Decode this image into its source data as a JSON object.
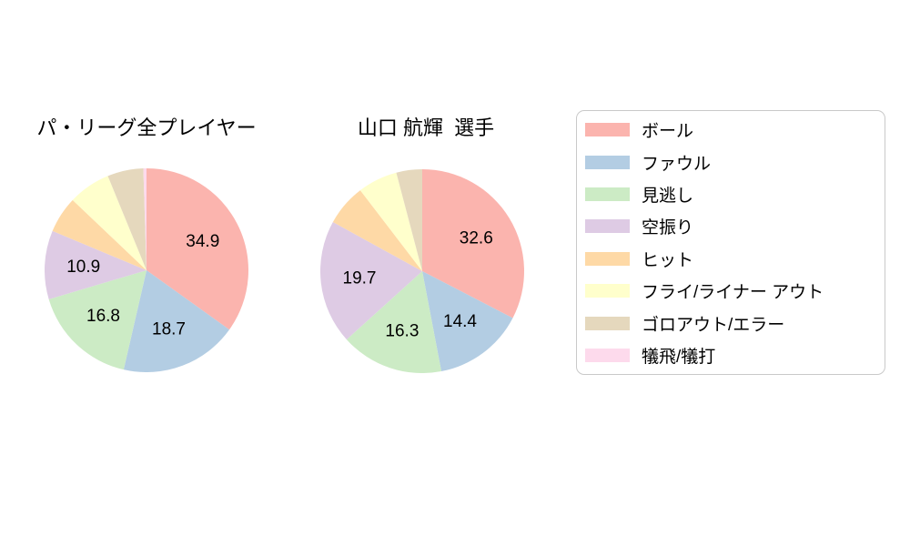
{
  "background_color": "#ffffff",
  "text_color": "#000000",
  "palette": {
    "red": "#fbb4ae",
    "blue": "#b3cde3",
    "green": "#ccebc5",
    "purple": "#decbe4",
    "orange": "#fed9a6",
    "yellow": "#ffffcc",
    "tan": "#e5d8bd",
    "pink": "#fddaec"
  },
  "chart_data": [
    {
      "type": "pie",
      "title": "パ・リーグ全プレイヤー",
      "direction": "clockwise",
      "start_angle": "12-oclock",
      "slices": [
        {
          "label": "ボール",
          "value": 34.9,
          "display": "34.9",
          "color": "#fbb4ae"
        },
        {
          "label": "ファウル",
          "value": 18.7,
          "display": "18.7",
          "color": "#b3cde3"
        },
        {
          "label": "見逃し",
          "value": 16.8,
          "display": "16.8",
          "color": "#ccebc5"
        },
        {
          "label": "空振り",
          "value": 10.9,
          "display": "10.9",
          "color": "#decbe4"
        },
        {
          "label": "ヒット",
          "value": 5.8,
          "display": "",
          "color": "#fed9a6"
        },
        {
          "label": "フライ/ライナー アウト",
          "value": 6.7,
          "display": "",
          "color": "#ffffcc"
        },
        {
          "label": "ゴロアウト/エラー",
          "value": 5.7,
          "display": "",
          "color": "#e5d8bd"
        },
        {
          "label": "犠飛/犠打",
          "value": 0.5,
          "display": "",
          "color": "#fddaec"
        }
      ]
    },
    {
      "type": "pie",
      "title": "山口 航輝  選手",
      "direction": "clockwise",
      "start_angle": "12-oclock",
      "slices": [
        {
          "label": "ボール",
          "value": 32.6,
          "display": "32.6",
          "color": "#fbb4ae"
        },
        {
          "label": "ファウル",
          "value": 14.4,
          "display": "14.4",
          "color": "#b3cde3"
        },
        {
          "label": "見逃し",
          "value": 16.3,
          "display": "16.3",
          "color": "#ccebc5"
        },
        {
          "label": "空振り",
          "value": 19.7,
          "display": "19.7",
          "color": "#decbe4"
        },
        {
          "label": "ヒット",
          "value": 6.6,
          "display": "",
          "color": "#fed9a6"
        },
        {
          "label": "フライ/ライナー アウト",
          "value": 6.3,
          "display": "",
          "color": "#ffffcc"
        },
        {
          "label": "ゴロアウト/エラー",
          "value": 4.1,
          "display": "",
          "color": "#e5d8bd"
        },
        {
          "label": "犠飛/犠打",
          "value": 0.0,
          "display": "",
          "color": "#fddaec"
        }
      ]
    }
  ],
  "legend": {
    "items": [
      {
        "label": "ボール",
        "color": "#fbb4ae"
      },
      {
        "label": "ファウル",
        "color": "#b3cde3"
      },
      {
        "label": "見逃し",
        "color": "#ccebc5"
      },
      {
        "label": "空振り",
        "color": "#decbe4"
      },
      {
        "label": "ヒット",
        "color": "#fed9a6"
      },
      {
        "label": "フライ/ライナー アウト",
        "color": "#ffffcc"
      },
      {
        "label": "ゴロアウト/エラー",
        "color": "#e5d8bd"
      },
      {
        "label": "犠飛/犠打",
        "color": "#fddaec"
      }
    ]
  }
}
